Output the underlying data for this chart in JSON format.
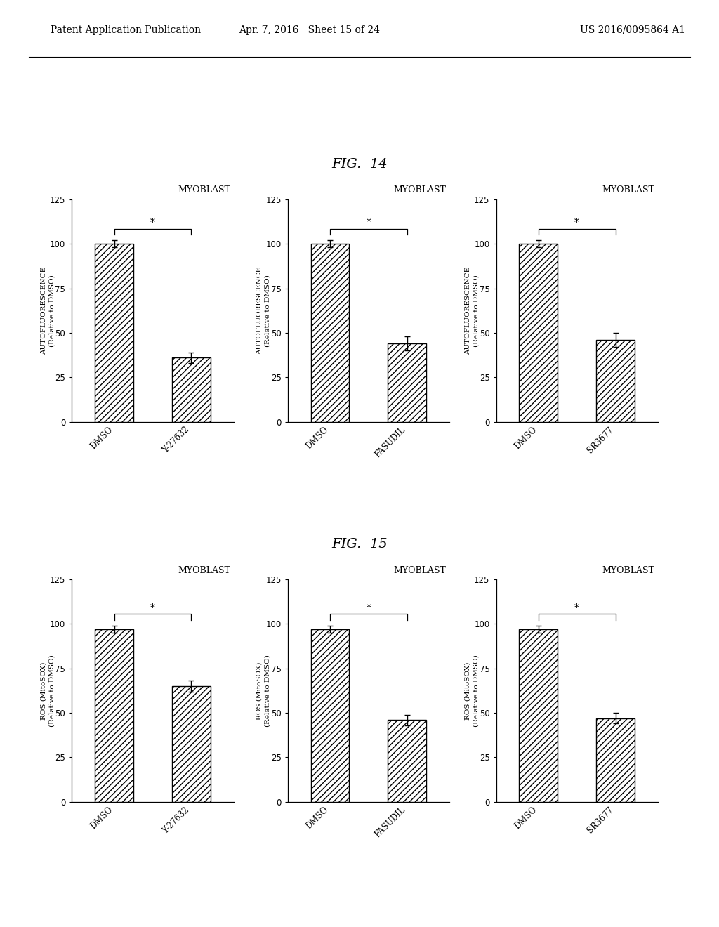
{
  "fig14": {
    "title": "FIG.  14",
    "subplots": [
      {
        "title": "MYOBLAST",
        "ylabel": "AUTOFLUORESCENCE\n(Relative to DMSO)",
        "categories": [
          "DMSO",
          "Y-27632"
        ],
        "values": [
          100,
          36
        ],
        "errors": [
          2,
          3
        ],
        "ylim": [
          0,
          125
        ],
        "yticks": [
          0,
          25,
          50,
          75,
          100,
          125
        ]
      },
      {
        "title": "MYOBLAST",
        "ylabel": "AUTOFLUORESCENCE\n(Relative to DMSO)",
        "categories": [
          "DMSO",
          "FASUDIL"
        ],
        "values": [
          100,
          44
        ],
        "errors": [
          2,
          4
        ],
        "ylim": [
          0,
          125
        ],
        "yticks": [
          0,
          25,
          50,
          75,
          100,
          125
        ]
      },
      {
        "title": "MYOBLAST",
        "ylabel": "AUTOFLUORESCENCE\n(Relative to DMSO)",
        "categories": [
          "DMSO",
          "SR3677"
        ],
        "values": [
          100,
          46
        ],
        "errors": [
          2,
          4
        ],
        "ylim": [
          0,
          125
        ],
        "yticks": [
          0,
          25,
          50,
          75,
          100,
          125
        ]
      }
    ]
  },
  "fig15": {
    "title": "FIG.  15",
    "subplots": [
      {
        "title": "MYOBLAST",
        "ylabel": "ROS (MitoSOX)\n(Relative to DMSO)",
        "categories": [
          "DMSO",
          "Y-27632"
        ],
        "values": [
          97,
          65
        ],
        "errors": [
          2,
          3
        ],
        "ylim": [
          0,
          125
        ],
        "yticks": [
          0,
          25,
          50,
          75,
          100,
          125
        ]
      },
      {
        "title": "MYOBLAST",
        "ylabel": "ROS (MitoSOX)\n(Relative to DMSO)",
        "categories": [
          "DMSO",
          "FASUDIL"
        ],
        "values": [
          97,
          46
        ],
        "errors": [
          2,
          3
        ],
        "ylim": [
          0,
          125
        ],
        "yticks": [
          0,
          25,
          50,
          75,
          100,
          125
        ]
      },
      {
        "title": "MYOBLAST",
        "ylabel": "ROS (MitoSOX)\n(Relative to DMSO)",
        "categories": [
          "DMSO",
          "SR3677"
        ],
        "values": [
          97,
          47
        ],
        "errors": [
          2,
          3
        ],
        "ylim": [
          0,
          125
        ],
        "yticks": [
          0,
          25,
          50,
          75,
          100,
          125
        ]
      }
    ]
  },
  "background_color": "#ffffff",
  "bar_color": "#ffffff",
  "bar_edge_color": "#000000",
  "hatch_pattern": "////",
  "sig_marker": "*",
  "header_text": "Patent Application Publication",
  "header_date": "Apr. 7, 2016   Sheet 15 of 24",
  "header_patent": "US 2016/0095864 A1"
}
